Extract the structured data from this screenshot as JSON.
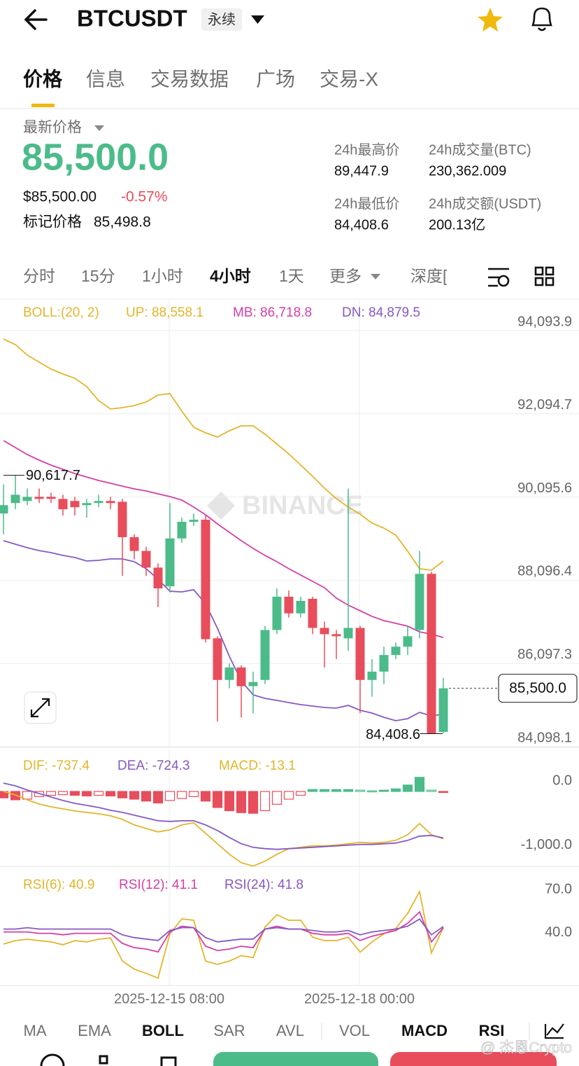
{
  "header": {
    "symbol": "BTCUSDT",
    "contract": "永续"
  },
  "tabs": [
    "价格",
    "信息",
    "交易数据",
    "广场",
    "交易-X"
  ],
  "price": {
    "label": "最新价格",
    "last": "85,500.0",
    "usd": "$85,500.00",
    "change": "-0.57%",
    "mark_label": "标记价格",
    "mark": "85,498.8"
  },
  "stats": [
    {
      "label": "24h最高价",
      "value": "89,447.9"
    },
    {
      "label": "24h成交量(BTC)",
      "value": "230,362.009"
    },
    {
      "label": "24h最低价",
      "value": "84,408.6"
    },
    {
      "label": "24h成交额(USDT)",
      "value": "200.13亿"
    }
  ],
  "intervals": [
    "分时",
    "15分",
    "1小时",
    "4小时",
    "1天",
    "更多",
    "深度["
  ],
  "watermark": "BINANCE",
  "x_labels": [
    "2025-12-15 08:00",
    "2025-12-18 00:00"
  ],
  "indicator_tabs": [
    "MA",
    "EMA",
    "BOLL",
    "SAR",
    "AVL",
    "VOL",
    "MACD",
    "RSI"
  ],
  "credit": "@ 杰恩Crypto",
  "chart_data": [
    {
      "type": "candlestick",
      "indicator": "BOLL:(20, 2)",
      "grid": true,
      "up_color": "#4cbb8a",
      "down_color": "#e84d5b",
      "ylim": [
        84098.1,
        94093.9
      ],
      "yticks": [
        {
          "value": 94093.9,
          "label": "94,093.9"
        },
        {
          "value": 92094.7,
          "label": "92,094.7"
        },
        {
          "value": 90095.6,
          "label": "90,095.6"
        },
        {
          "value": 88096.4,
          "label": "88,096.4"
        },
        {
          "value": 86097.3,
          "label": "86,097.3"
        },
        {
          "value": 84098.1,
          "label": "84,098.1"
        }
      ],
      "high_label": "90,617.7",
      "low_label": "84,408.6",
      "last_label": "85,500.0",
      "open": [
        89700,
        89950,
        90000,
        90100,
        90100,
        90050,
        90000,
        89900,
        89950,
        90000,
        89980,
        89130,
        88800,
        88400,
        87950,
        89100,
        89500,
        89550,
        86700,
        85700,
        86000,
        85550,
        85700,
        86900,
        87700,
        87300,
        87650,
        86950,
        86800,
        86700,
        86950,
        85700,
        85900,
        86300,
        86500,
        86900,
        88250,
        84450
      ],
      "high": [
        90400,
        90617.7,
        90300,
        90300,
        90200,
        90150,
        90100,
        90050,
        90150,
        90100,
        90050,
        89200,
        88900,
        88500,
        89950,
        89600,
        89700,
        89650,
        86750,
        86100,
        86050,
        85900,
        87000,
        87900,
        87850,
        87700,
        87700,
        87100,
        86900,
        90300,
        87000,
        86200,
        86500,
        86600,
        87000,
        88800,
        88300,
        85750
      ],
      "low": [
        89200,
        89800,
        89900,
        89950,
        89950,
        89650,
        89650,
        89600,
        89850,
        89800,
        88200,
        88600,
        88200,
        87450,
        87800,
        89000,
        89400,
        86600,
        84700,
        85500,
        84800,
        84900,
        85600,
        86800,
        87200,
        87200,
        86800,
        86000,
        86200,
        86400,
        84900,
        85300,
        85600,
        86200,
        86300,
        86700,
        84408.6,
        84420
      ],
      "close": [
        89900,
        90150,
        90100,
        90050,
        90050,
        89800,
        89850,
        89950,
        90000,
        89950,
        89130,
        88800,
        88400,
        87900,
        89100,
        89500,
        89550,
        86680,
        85700,
        86000,
        85550,
        85650,
        86900,
        87700,
        87300,
        87600,
        86950,
        86800,
        86750,
        86950,
        85700,
        85900,
        86300,
        86500,
        86750,
        88250,
        84408.6,
        85500
      ],
      "series": [
        {
          "name": "UP: 88,558.1",
          "color": "#e3b52c",
          "values": [
            93892,
            93757,
            93505,
            93336,
            93168,
            93050,
            92950,
            92748,
            92411,
            92210,
            92243,
            92293,
            92377,
            92546,
            92580,
            92158,
            91771,
            91637,
            91536,
            91687,
            91805,
            91805,
            91603,
            91367,
            91132,
            90863,
            90593,
            90307,
            90055,
            89853,
            89685,
            89466,
            89348,
            89180,
            88793,
            88372,
            88338,
            88558.1
          ]
        },
        {
          "name": "MB: 86,718.8",
          "color": "#d43fa6",
          "values": [
            91451,
            91283,
            91115,
            90980,
            90862,
            90761,
            90660,
            90576,
            90492,
            90425,
            90357,
            90290,
            90240,
            90172,
            90105,
            90021,
            89853,
            89668,
            89449,
            89247,
            89045,
            88860,
            88692,
            88540,
            88372,
            88220,
            88069,
            87917,
            87665,
            87497,
            87362,
            87227,
            87126,
            87059,
            86992,
            86857,
            86800,
            86718.8
          ]
        },
        {
          "name": "DN: 84,879.5",
          "color": "#8659c4",
          "values": [
            89045,
            88961,
            88877,
            88809,
            88759,
            88692,
            88641,
            88557,
            88574,
            88608,
            88608,
            88540,
            88372,
            88119,
            87833,
            87816,
            87867,
            87530,
            86941,
            86268,
            85679,
            85342,
            85258,
            85208,
            85157,
            85107,
            85073,
            85039,
            85023,
            85090,
            84972,
            84905,
            84804,
            84720,
            84770,
            84921,
            84837,
            84879.5
          ]
        }
      ]
    },
    {
      "type": "macd",
      "grid": false,
      "up_color": "#4cbb8a",
      "down_color": "#e84d5b",
      "ylim": [
        -1200,
        600
      ],
      "yticks": [
        {
          "value": 0,
          "label": "0.0"
        },
        {
          "value": -1000,
          "label": "-1,000.0"
        }
      ],
      "series": [
        {
          "name": "DIF: -737.4",
          "color": "#e3b52c",
          "values": [
            0,
            -54,
            -130,
            -196,
            -239,
            -272,
            -304,
            -326,
            -348,
            -380,
            -435,
            -522,
            -576,
            -630,
            -598,
            -522,
            -489,
            -652,
            -815,
            -978,
            -1109,
            -1163,
            -1087,
            -978,
            -891,
            -870,
            -848,
            -848,
            -837,
            -815,
            -793,
            -804,
            -793,
            -761,
            -674,
            -500,
            -674,
            -737.4
          ]
        },
        {
          "name": "DEA: -724.3",
          "color": "#8659c4",
          "values": [
            130,
            87,
            22,
            -33,
            -87,
            -141,
            -185,
            -217,
            -250,
            -293,
            -326,
            -370,
            -413,
            -457,
            -467,
            -457,
            -457,
            -522,
            -609,
            -717,
            -815,
            -870,
            -891,
            -902,
            -891,
            -880,
            -870,
            -859,
            -848,
            -837,
            -826,
            -826,
            -815,
            -804,
            -761,
            -696,
            -685,
            -724.3
          ]
        },
        {
          "name": "MACD: -13.1",
          "color": "#e3b52c",
          "style": "histogram",
          "values": [
            -100,
            -130,
            -120,
            -80,
            -60,
            -50,
            -60,
            -70,
            -60,
            -70,
            -100,
            -120,
            -150,
            -180,
            -140,
            -110,
            -80,
            -150,
            -250,
            -300,
            -330,
            -340,
            -300,
            -200,
            -120,
            -60,
            30,
            30,
            30,
            30,
            20,
            10,
            20,
            40,
            100,
            220,
            20,
            -13.1
          ]
        }
      ]
    },
    {
      "type": "line",
      "grid": false,
      "ylim": [
        0,
        80
      ],
      "yticks": [
        {
          "value": 70,
          "label": "70.0"
        },
        {
          "value": 40,
          "label": "40.0"
        }
      ],
      "series": [
        {
          "name": "RSI(6): 40.9",
          "color": "#e3b52c",
          "values": [
            29.5,
            31.9,
            32.9,
            31.9,
            31.0,
            29.0,
            31.9,
            31.0,
            32.9,
            33.8,
            17.6,
            11.9,
            9.0,
            5.7,
            36.7,
            47.1,
            46.2,
            17.6,
            15.2,
            17.6,
            21.4,
            20.0,
            41.4,
            50.0,
            46.2,
            46.2,
            34.3,
            31.9,
            31.9,
            34.3,
            23.8,
            31.0,
            36.7,
            40.5,
            51.0,
            66.2,
            23.3,
            40.9
          ]
        },
        {
          "name": "RSI(12): 41.1",
          "color": "#d43fa6",
          "values": [
            38,
            38,
            38,
            37,
            37,
            36,
            37,
            37,
            37,
            37,
            30,
            27,
            26,
            24,
            38,
            42,
            41,
            28,
            25,
            26,
            28,
            27,
            40,
            42,
            40,
            40,
            37,
            36,
            36,
            37,
            32,
            35,
            37,
            39,
            44,
            52,
            31,
            41.1
          ]
        },
        {
          "name": "RSI(24): 41.8",
          "color": "#8659c4",
          "values": [
            40,
            40,
            41,
            40,
            40,
            40,
            40,
            40,
            40,
            40,
            36,
            34,
            33,
            32,
            39,
            41,
            41,
            34,
            31,
            32,
            33,
            33,
            40,
            41,
            40,
            40,
            39,
            38,
            38,
            39,
            36,
            38,
            39,
            40,
            42,
            47,
            36,
            41.8
          ]
        }
      ]
    }
  ]
}
